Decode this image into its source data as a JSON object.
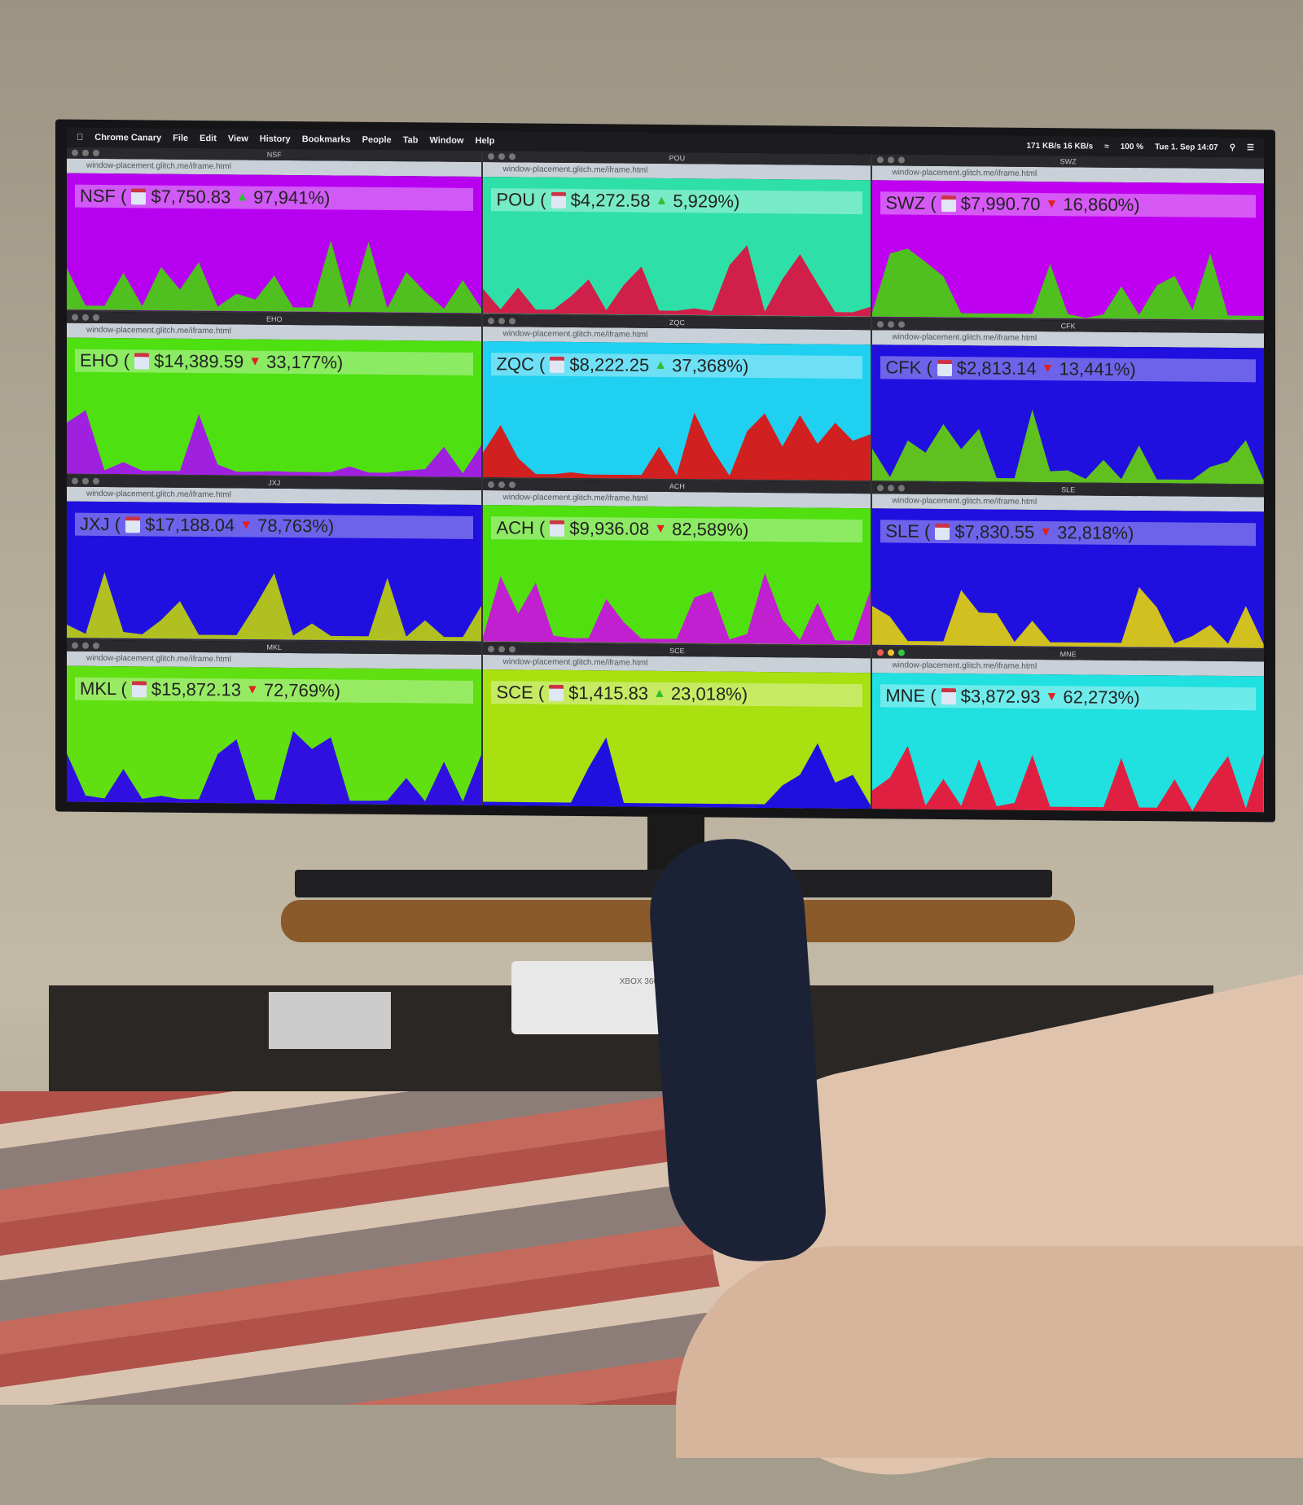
{
  "menubar": {
    "app": "Chrome Canary",
    "items": [
      "File",
      "Edit",
      "View",
      "History",
      "Bookmarks",
      "People",
      "Tab",
      "Window",
      "Help"
    ],
    "network": "171 KB/s 16 KB/s",
    "battery": "100 %",
    "clock": "Tue 1. Sep 14:07"
  },
  "url": "window-placement.glitch.me/iframe.html",
  "windows": [
    {
      "title": "NSF",
      "symbol": "NSF (",
      "price": "$7,750.83",
      "dir": "up",
      "change": "97,941%)",
      "bg": "#b800f0",
      "chart": "#4fc020",
      "focused": false
    },
    {
      "title": "POU",
      "symbol": "POU (",
      "price": "$4,272.58",
      "dir": "up",
      "change": "5,929%)",
      "bg": "#2ee0a8",
      "chart": "#d0204a",
      "focused": false
    },
    {
      "title": "SWZ",
      "symbol": "SWZ (",
      "price": "$7,990.70",
      "dir": "down",
      "change": "16,860%)",
      "bg": "#c000f0",
      "chart": "#4fc020",
      "focused": false
    },
    {
      "title": "EHO",
      "symbol": "EHO (",
      "price": "$14,389.59",
      "dir": "down",
      "change": "33,177%)",
      "bg": "#4ee010",
      "chart": "#a020e0",
      "focused": false
    },
    {
      "title": "ZQC",
      "symbol": "ZQC (",
      "price": "$8,222.25",
      "dir": "up",
      "change": "37,368%)",
      "bg": "#20d0f0",
      "chart": "#d02020",
      "focused": false
    },
    {
      "title": "CFK",
      "symbol": "CFK (",
      "price": "$2,813.14",
      "dir": "down",
      "change": "13,441%)",
      "bg": "#2010e0",
      "chart": "#60c020",
      "focused": false
    },
    {
      "title": "JXJ",
      "symbol": "JXJ (",
      "price": "$17,188.04",
      "dir": "down",
      "change": "78,763%)",
      "bg": "#2010e0",
      "chart": "#b0c020",
      "focused": false
    },
    {
      "title": "ACH",
      "symbol": "ACH (",
      "price": "$9,936.08",
      "dir": "down",
      "change": "82,589%)",
      "bg": "#50e010",
      "chart": "#c020d0",
      "focused": false
    },
    {
      "title": "SLE",
      "symbol": "SLE (",
      "price": "$7,830.55",
      "dir": "down",
      "change": "32,818%)",
      "bg": "#2010e0",
      "chart": "#d0c020",
      "focused": false
    },
    {
      "title": "MKL",
      "symbol": "MKL (",
      "price": "$15,872.13",
      "dir": "down",
      "change": "72,769%)",
      "bg": "#60e010",
      "chart": "#3010e0",
      "focused": false
    },
    {
      "title": "SCE",
      "symbol": "SCE (",
      "price": "$1,415.83",
      "dir": "up",
      "change": "23,018%)",
      "bg": "#a8e010",
      "chart": "#2010e0",
      "focused": false
    },
    {
      "title": "MNE",
      "symbol": "MNE (",
      "price": "$3,872.93",
      "dir": "down",
      "change": "62,273%)",
      "bg": "#20e0e0",
      "chart": "#e02040",
      "focused": true
    }
  ],
  "colors": {
    "up": "#30c030",
    "down": "#e02020"
  },
  "icons": {
    "up": "triangle-up",
    "down": "triangle-down"
  },
  "xbox_label": "XBOX 360"
}
